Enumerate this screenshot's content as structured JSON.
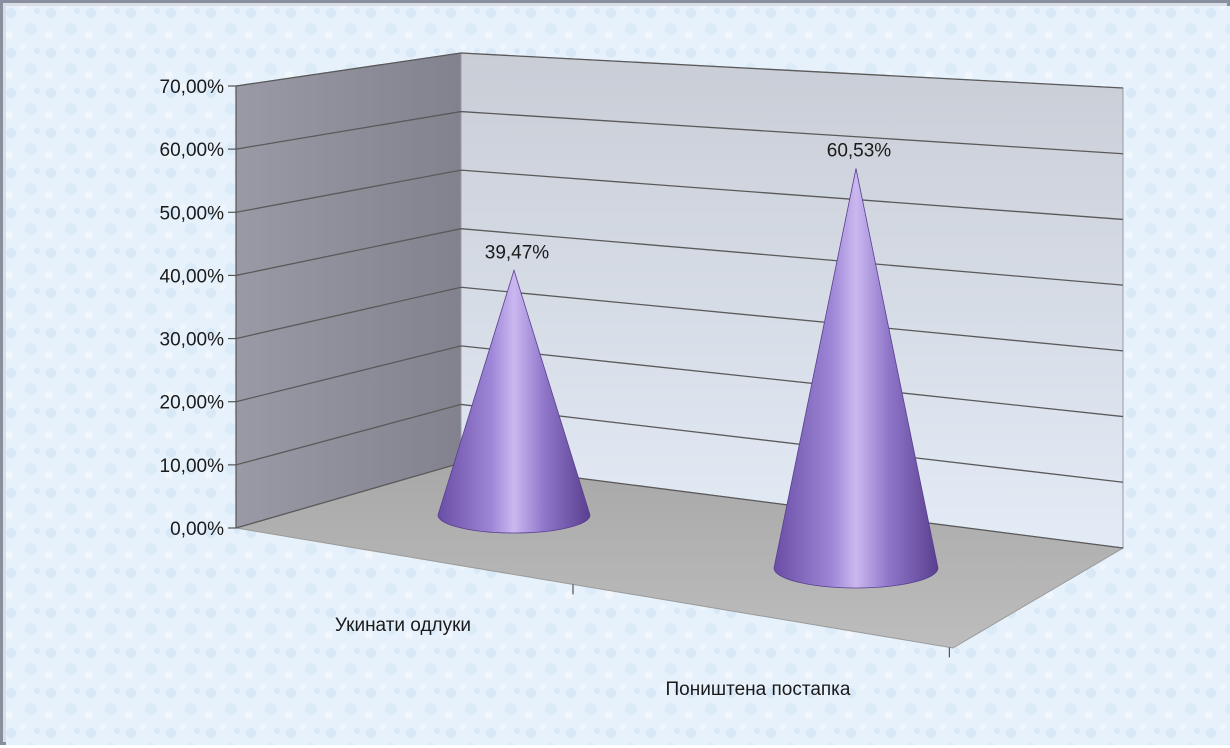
{
  "chart_data": {
    "type": "bar",
    "shape": "cone-3d",
    "categories": [
      "Укинати одлуки",
      "Поништена постапка"
    ],
    "values": [
      39.47,
      60.53
    ],
    "value_labels": [
      "39,47%",
      "60,53%"
    ],
    "y_ticks": [
      "0,00%",
      "10,00%",
      "20,00%",
      "30,00%",
      "40,00%",
      "50,00%",
      "60,00%",
      "70,00%"
    ],
    "ylim": [
      0,
      70
    ],
    "grid": true,
    "legend": "none",
    "title": "",
    "xlabel": "",
    "ylabel": ""
  },
  "colors": {
    "cone_base": "#8a6fc4",
    "cone_dark": "#5a3f8f",
    "cone_light": "#c7b3ee",
    "back_wall_top": "#c9cdd6",
    "back_wall_bottom": "#dfe7f3",
    "side_wall": "#8d8d99",
    "floor": "#b3b3b3",
    "gridline": "#5a5a5a"
  }
}
